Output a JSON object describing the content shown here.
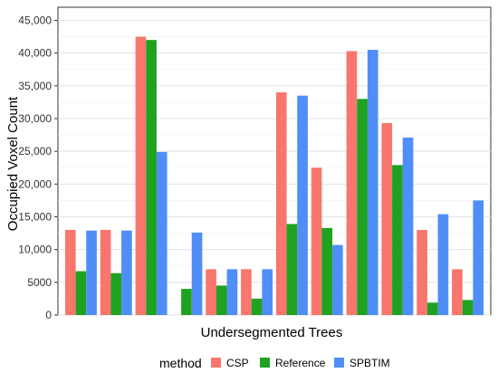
{
  "chart_data": {
    "type": "bar",
    "title": "",
    "xlabel": "Undersegmented Trees",
    "ylabel": "Occupied Voxel Count",
    "ylim": [
      0,
      47000
    ],
    "yticks": [
      0,
      5000,
      10000,
      15000,
      20000,
      25000,
      30000,
      35000,
      40000,
      45000
    ],
    "ytick_labels": [
      "0",
      "5000",
      "10,000",
      "15,000",
      "20,000",
      "25,000",
      "30,000",
      "35,000",
      "40,000",
      "45,000"
    ],
    "grid": true,
    "legend": {
      "title": "method",
      "position": "bottom"
    },
    "series": [
      {
        "name": "CSP",
        "color": "#F8766D",
        "values": [
          13000,
          13000,
          42500,
          null,
          7000,
          7000,
          34000,
          22500,
          40300,
          29300,
          13000,
          7000
        ]
      },
      {
        "name": "Reference",
        "color": "#1FA21F",
        "values": [
          6700,
          6400,
          42000,
          4000,
          4500,
          2500,
          13900,
          13300,
          33000,
          22900,
          1900,
          2300
        ]
      },
      {
        "name": "SPBTIM",
        "color": "#4F8EF7",
        "values": [
          12900,
          12900,
          24900,
          12600,
          7000,
          7000,
          33500,
          10700,
          40500,
          27100,
          15400,
          17500
        ]
      }
    ]
  }
}
